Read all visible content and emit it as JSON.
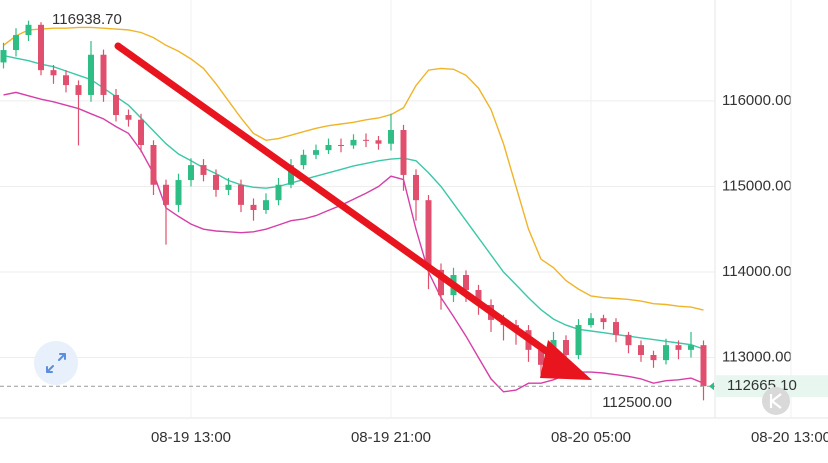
{
  "chart_data": {
    "type": "candlestick",
    "categories": [
      null,
      null,
      null,
      null,
      null,
      null,
      null,
      null,
      null,
      null,
      null,
      null,
      null,
      null,
      null,
      "08-19 13:00",
      null,
      null,
      null,
      null,
      null,
      null,
      null,
      null,
      null,
      null,
      null,
      null,
      null,
      null,
      null,
      "08-19 21:00",
      null,
      null,
      null,
      null,
      null,
      null,
      null,
      null,
      null,
      null,
      null,
      null,
      null,
      null,
      null,
      "08-20 05:00",
      null,
      null,
      null,
      null,
      null,
      null,
      null,
      null,
      null,
      null,
      null,
      null,
      null,
      null,
      null,
      "08-20 13:00"
    ],
    "open": [
      116450,
      116595,
      116770,
      116890,
      116360,
      116300,
      116185,
      116070,
      116540,
      116070,
      115835,
      115780,
      115485,
      115020,
      114785,
      115075,
      115250,
      115135,
      114960,
      115020,
      114785,
      114725,
      114840,
      115020,
      115250,
      115370,
      115425,
      115485,
      115480,
      115545,
      115540,
      115500,
      115660,
      115135,
      114840,
      114025,
      113730,
      113965,
      113790,
      113615,
      113440,
      113380,
      113320,
      113090,
      112915,
      113205,
      113030,
      113380,
      113460,
      113415,
      113265,
      113145,
      113030,
      112970,
      113145,
      113090,
      113145,
      null,
      null,
      null,
      null,
      null,
      null,
      null
    ],
    "high": [
      116680,
      116850,
      116938.7,
      116920,
      116420,
      116360,
      116240,
      116700,
      116600,
      116140,
      115900,
      115850,
      115540,
      115080,
      115150,
      115330,
      115320,
      115200,
      115100,
      115080,
      114860,
      114920,
      115100,
      115320,
      115430,
      115490,
      115560,
      115560,
      115610,
      115620,
      115590,
      115850,
      115720,
      115200,
      114900,
      114100,
      114050,
      114020,
      113850,
      113680,
      113500,
      113440,
      113380,
      113160,
      113300,
      113260,
      113450,
      113520,
      113500,
      113460,
      113300,
      113200,
      113080,
      113220,
      113200,
      113300,
      113200,
      null,
      null,
      null,
      null,
      null,
      null,
      null
    ],
    "low": [
      116380,
      116520,
      116700,
      116300,
      116200,
      116100,
      115480,
      115990,
      115990,
      115760,
      115700,
      115400,
      114900,
      114320,
      114700,
      115000,
      115060,
      114880,
      114900,
      114700,
      114600,
      114680,
      114780,
      114980,
      115200,
      115320,
      115380,
      115400,
      115440,
      115460,
      115430,
      115420,
      114950,
      114600,
      113800,
      113560,
      113650,
      113650,
      113500,
      113300,
      113200,
      113150,
      112950,
      112800,
      112850,
      112900,
      112980,
      113350,
      113330,
      113180,
      113050,
      112950,
      112880,
      112920,
      112980,
      113000,
      112500,
      null,
      null,
      null,
      null,
      null,
      null,
      null
    ],
    "close": [
      116595,
      116770,
      116890,
      116360,
      116300,
      116185,
      116070,
      116540,
      116070,
      115835,
      115780,
      115485,
      115020,
      114785,
      115075,
      115250,
      115135,
      114960,
      115020,
      114785,
      114725,
      114840,
      115020,
      115250,
      115370,
      115425,
      115485,
      115480,
      115545,
      115540,
      115500,
      115660,
      115135,
      114840,
      114025,
      113730,
      113965,
      113790,
      113615,
      113440,
      113380,
      113320,
      113090,
      112915,
      113205,
      113030,
      113380,
      113460,
      113415,
      113265,
      113145,
      113030,
      112970,
      113145,
      113090,
      113145,
      112665.1,
      null,
      null,
      null,
      null,
      null,
      null,
      null
    ],
    "up_color": "#2ebd85",
    "down_color": "#e0506e",
    "bands": [
      {
        "color": "#f0b429",
        "values": [
          116650,
          116760,
          116830,
          116840,
          116850,
          116850,
          116860,
          116860,
          116850,
          116840,
          116830,
          116800,
          116740,
          116650,
          116580,
          116490,
          116380,
          116200,
          116000,
          115800,
          115620,
          115540,
          115560,
          115600,
          115640,
          115680,
          115710,
          115730,
          115750,
          115780,
          115800,
          115840,
          115920,
          116180,
          116360,
          116380,
          116370,
          116300,
          116150,
          115900,
          115500,
          115000,
          114500,
          114150,
          114050,
          113900,
          113800,
          113720,
          113700,
          113690,
          113680,
          113660,
          113630,
          113620,
          113600,
          113590,
          113555,
          null,
          null,
          null,
          null,
          null,
          null,
          null
        ]
      },
      {
        "color": "#3cc8a8",
        "values": [
          116530,
          116500,
          116470,
          116430,
          116400,
          116350,
          116300,
          116250,
          116150,
          116050,
          115950,
          115800,
          115650,
          115500,
          115380,
          115300,
          115220,
          115150,
          115070,
          115020,
          114990,
          114980,
          115000,
          115040,
          115080,
          115120,
          115160,
          115200,
          115240,
          115270,
          115300,
          115320,
          115330,
          115300,
          115160,
          115000,
          114800,
          114600,
          114400,
          114200,
          114000,
          113850,
          113700,
          113560,
          113450,
          113380,
          113330,
          113310,
          113290,
          113270,
          113250,
          113230,
          113210,
          113190,
          113170,
          113150,
          113100,
          null,
          null,
          null,
          null,
          null,
          null,
          null
        ]
      },
      {
        "color": "#d63fa8",
        "values": [
          116070,
          116100,
          116060,
          116020,
          115990,
          115950,
          115910,
          115850,
          115790,
          115700,
          115620,
          115420,
          115150,
          114750,
          114650,
          114560,
          114500,
          114480,
          114470,
          114460,
          114470,
          114500,
          114550,
          114600,
          114620,
          114660,
          114720,
          114780,
          114850,
          114920,
          115000,
          115120,
          115080,
          114500,
          114000,
          113700,
          113480,
          113250,
          113000,
          112750,
          112600,
          112620,
          112700,
          112700,
          112740,
          112800,
          112830,
          112830,
          112820,
          112800,
          112780,
          112750,
          112700,
          112730,
          112740,
          112760,
          112700,
          null,
          null,
          null,
          null,
          null,
          null,
          null
        ]
      }
    ],
    "ylim": [
      112270,
      117180
    ],
    "yticks": [
      {
        "value": 113000,
        "label": "113000.00"
      },
      {
        "value": 114000,
        "label": "114000.00"
      },
      {
        "value": 115000,
        "label": "115000.00"
      },
      {
        "value": 116000,
        "label": "116000.00"
      }
    ],
    "grid": true,
    "max_label": "116938.70",
    "min_label": "112500.00",
    "last_price": {
      "value": 112665.1,
      "label": "112665.10"
    }
  }
}
